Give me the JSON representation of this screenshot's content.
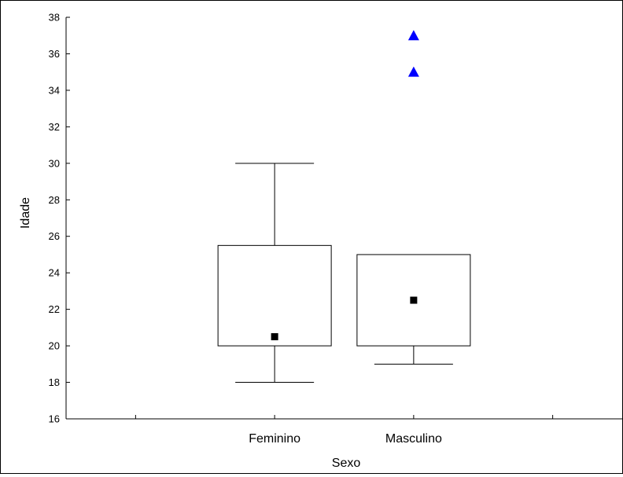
{
  "chart_data": {
    "type": "boxplot",
    "xlabel": "Sexo",
    "ylabel": "Idade",
    "ylim": [
      16,
      38
    ],
    "yticks": [
      16,
      18,
      20,
      22,
      24,
      26,
      28,
      30,
      32,
      34,
      36,
      38
    ],
    "categories": [
      "Feminino",
      "Masculino"
    ],
    "boxes": [
      {
        "category": "Feminino",
        "whisker_low": 18,
        "q1": 20,
        "q3": 25.5,
        "whisker_high": 30,
        "median": 20.5,
        "outliers": []
      },
      {
        "category": "Masculino",
        "whisker_low": 19,
        "q1": 20,
        "q3": 25,
        "whisker_high": 25,
        "median": 22.5,
        "outliers": [
          35,
          37
        ]
      }
    ],
    "colors": {
      "box": "#000000",
      "median_marker": "#000000",
      "outlier_marker": "#0000ff"
    },
    "grid": false,
    "legend": "none"
  }
}
